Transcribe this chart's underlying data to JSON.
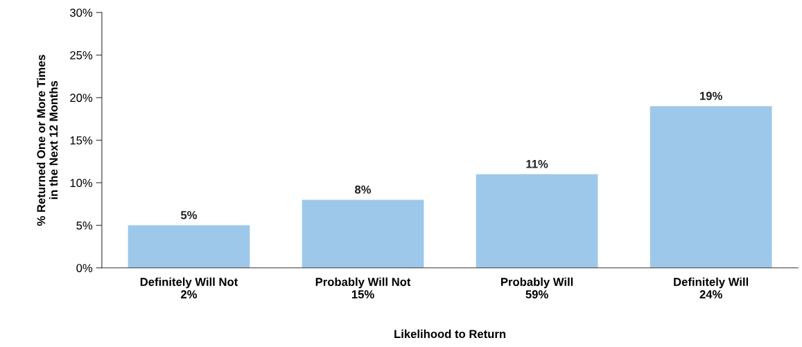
{
  "chart_data": {
    "type": "bar",
    "xlabel": "Likelihood to Return",
    "ylabel": "% Returned One or More Times\nin the Next 12 Months",
    "categories": [
      "Definitely Will Not\n2%",
      "Probably Will Not\n15%",
      "Probably Will\n59%",
      "Definitely Will\n24%"
    ],
    "values": [
      5,
      8,
      11,
      19
    ],
    "color": "#9dc8ea",
    "value_labels": [
      "5%",
      "8%",
      "11%",
      "19%"
    ],
    "ylim": [
      0,
      30
    ],
    "yticks": [
      {
        "value": 0,
        "label": "0%"
      },
      {
        "value": 5,
        "label": "5%"
      },
      {
        "value": 10,
        "label": "10%"
      },
      {
        "value": 15,
        "label": "15%"
      },
      {
        "value": 20,
        "label": "20%"
      },
      {
        "value": 25,
        "label": "25%"
      },
      {
        "value": 30,
        "label": "30%"
      }
    ],
    "grid": false
  }
}
